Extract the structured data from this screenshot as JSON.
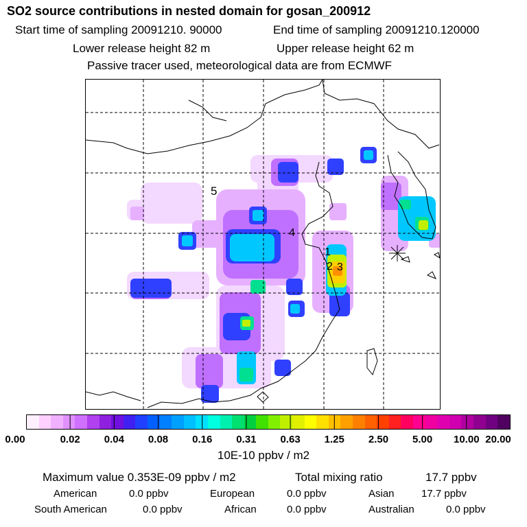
{
  "header": {
    "title": "SO2 source contributions in nested domain for gosan_200912",
    "start_time": "Start time of sampling 20091210. 90000",
    "end_time": "End time of sampling 20091210.120000",
    "lower_release": "Lower release height   82 m",
    "upper_release": "Upper release height   62 m",
    "tracer_note": "Passive tracer used, meteorological data are from ECMWF"
  },
  "map": {
    "region_labels": [
      "5",
      "4",
      "1",
      "2",
      "3"
    ],
    "receptor_marker": "star-icon"
  },
  "colorbar": {
    "colors": [
      "#fff0ff",
      "#ffd0ff",
      "#f0b0ff",
      "#e090ff",
      "#d070ff",
      "#b040f0",
      "#9020e0",
      "#7010e0",
      "#4020f0",
      "#2040ff",
      "#0060ff",
      "#0080ff",
      "#00a0ff",
      "#00c0ff",
      "#00e0ff",
      "#00ffe0",
      "#00f0b0",
      "#00e070",
      "#00d040",
      "#40e000",
      "#80f000",
      "#c0f000",
      "#e0f000",
      "#ffff00",
      "#ffe000",
      "#ffc000",
      "#ffa000",
      "#ff8000",
      "#ff6000",
      "#ff4000",
      "#ff2020",
      "#ff0060",
      "#ff0090",
      "#f000a0",
      "#e000b0",
      "#d000b0",
      "#b000a0",
      "#900090",
      "#700080",
      "#500060"
    ],
    "tick_labels": [
      "0.00",
      "0.02",
      "0.04",
      "0.08",
      "0.16",
      "0.31",
      "0.63",
      "1.25",
      "2.50",
      "5.00",
      "10.00",
      "20.00"
    ],
    "units": "10E-10 ppbv / m2"
  },
  "stats": {
    "max_value": "Maximum value  0.353E-09 ppbv / m2",
    "total_label": "Total mixing ratio",
    "total_value": "17.7 ppbv",
    "regions": [
      {
        "name": "American",
        "value": "0.0 ppbv"
      },
      {
        "name": "European",
        "value": "0.0 ppbv"
      },
      {
        "name": "Asian",
        "value": "17.7 ppbv"
      },
      {
        "name": "South American",
        "value": "0.0 ppbv"
      },
      {
        "name": "African",
        "value": "0.0 ppbv"
      },
      {
        "name": "Australian",
        "value": "0.0 ppbv"
      }
    ]
  }
}
